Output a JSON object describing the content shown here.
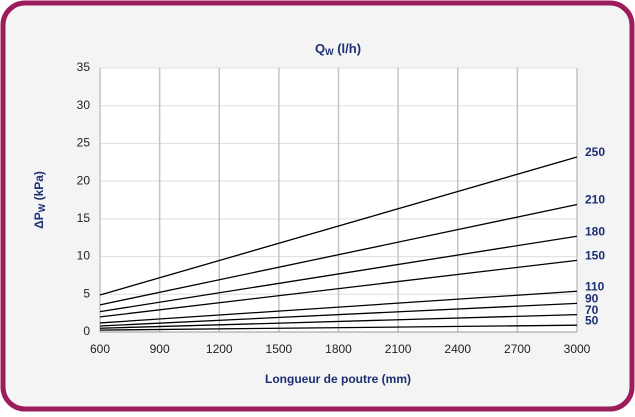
{
  "chart_data": {
    "type": "line",
    "title": [
      "Q",
      "W",
      " (l/h)"
    ],
    "ylabel": [
      "ΔP",
      "W",
      " (kPa)"
    ],
    "xlabel": "Longueur de poutre (mm)",
    "x": [
      600,
      3000
    ],
    "series": [
      {
        "name": "250",
        "color": "#000000",
        "values": [
          4.9,
          23.2
        ]
      },
      {
        "name": "210",
        "color": "#000000",
        "values": [
          3.6,
          16.9
        ]
      },
      {
        "name": "180",
        "color": "#000000",
        "values": [
          2.7,
          12.7
        ]
      },
      {
        "name": "150",
        "color": "#000000",
        "values": [
          2.0,
          9.5
        ]
      },
      {
        "name": "110",
        "color": "#000000",
        "values": [
          1.2,
          5.4
        ]
      },
      {
        "name": "90",
        "color": "#000000",
        "values": [
          0.8,
          3.8
        ]
      },
      {
        "name": "70",
        "color": "#000000",
        "values": [
          0.5,
          2.3
        ]
      },
      {
        "name": "50",
        "color": "#000000",
        "values": [
          0.25,
          0.9
        ]
      }
    ],
    "xlim": [
      600,
      3000
    ],
    "xticks": [
      600,
      900,
      1200,
      1500,
      1800,
      2100,
      2400,
      2700,
      3000
    ],
    "ylim": [
      0,
      35
    ],
    "yticks": [
      0,
      5,
      10,
      15,
      20,
      25,
      30,
      35
    ],
    "grid": true
  }
}
